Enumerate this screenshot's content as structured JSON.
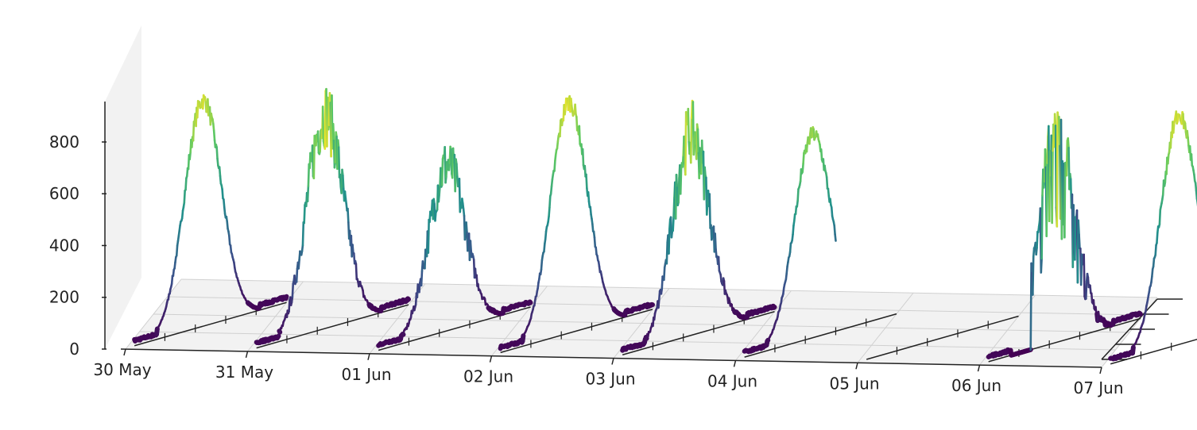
{
  "chart_data": {
    "type": "line",
    "projection": "3d",
    "title": "",
    "xlabel": "",
    "ylabel": "",
    "zlabel": "",
    "x_ticks": [
      "30 May",
      "31 May",
      "01 Jun",
      "02 Jun",
      "03 Jun",
      "04 Jun",
      "05 Jun",
      "06 Jun",
      "07 Jun"
    ],
    "z_ticks": [
      0,
      200,
      400,
      600,
      800
    ],
    "zlim": [
      0,
      950
    ],
    "colormap": "viridis",
    "colormap_stops": [
      "#440154",
      "#3b528b",
      "#21918c",
      "#5ec962",
      "#fde725"
    ],
    "pane_color": "#f2f2f2",
    "grid": true,
    "series": [
      {
        "day": "30 May",
        "peak": 900,
        "shape": "smooth",
        "has_data": true
      },
      {
        "day": "31 May",
        "peak": 890,
        "shape": "double",
        "has_data": true
      },
      {
        "day": "01 Jun",
        "peak": 690,
        "shape": "noisy",
        "has_data": true
      },
      {
        "day": "02 Jun",
        "peak": 920,
        "shape": "smooth",
        "has_data": true
      },
      {
        "day": "03 Jun",
        "peak": 840,
        "shape": "noisy",
        "has_data": true
      },
      {
        "day": "04 Jun",
        "peak": 810,
        "shape": "partial",
        "has_data": true
      },
      {
        "day": "05 Jun",
        "peak": 0,
        "shape": "none",
        "has_data": false
      },
      {
        "day": "06 Jun",
        "peak": 880,
        "shape": "spiky",
        "has_data": true
      },
      {
        "day": "07 Jun",
        "peak": 910,
        "shape": "smooth",
        "has_data": true
      }
    ]
  }
}
